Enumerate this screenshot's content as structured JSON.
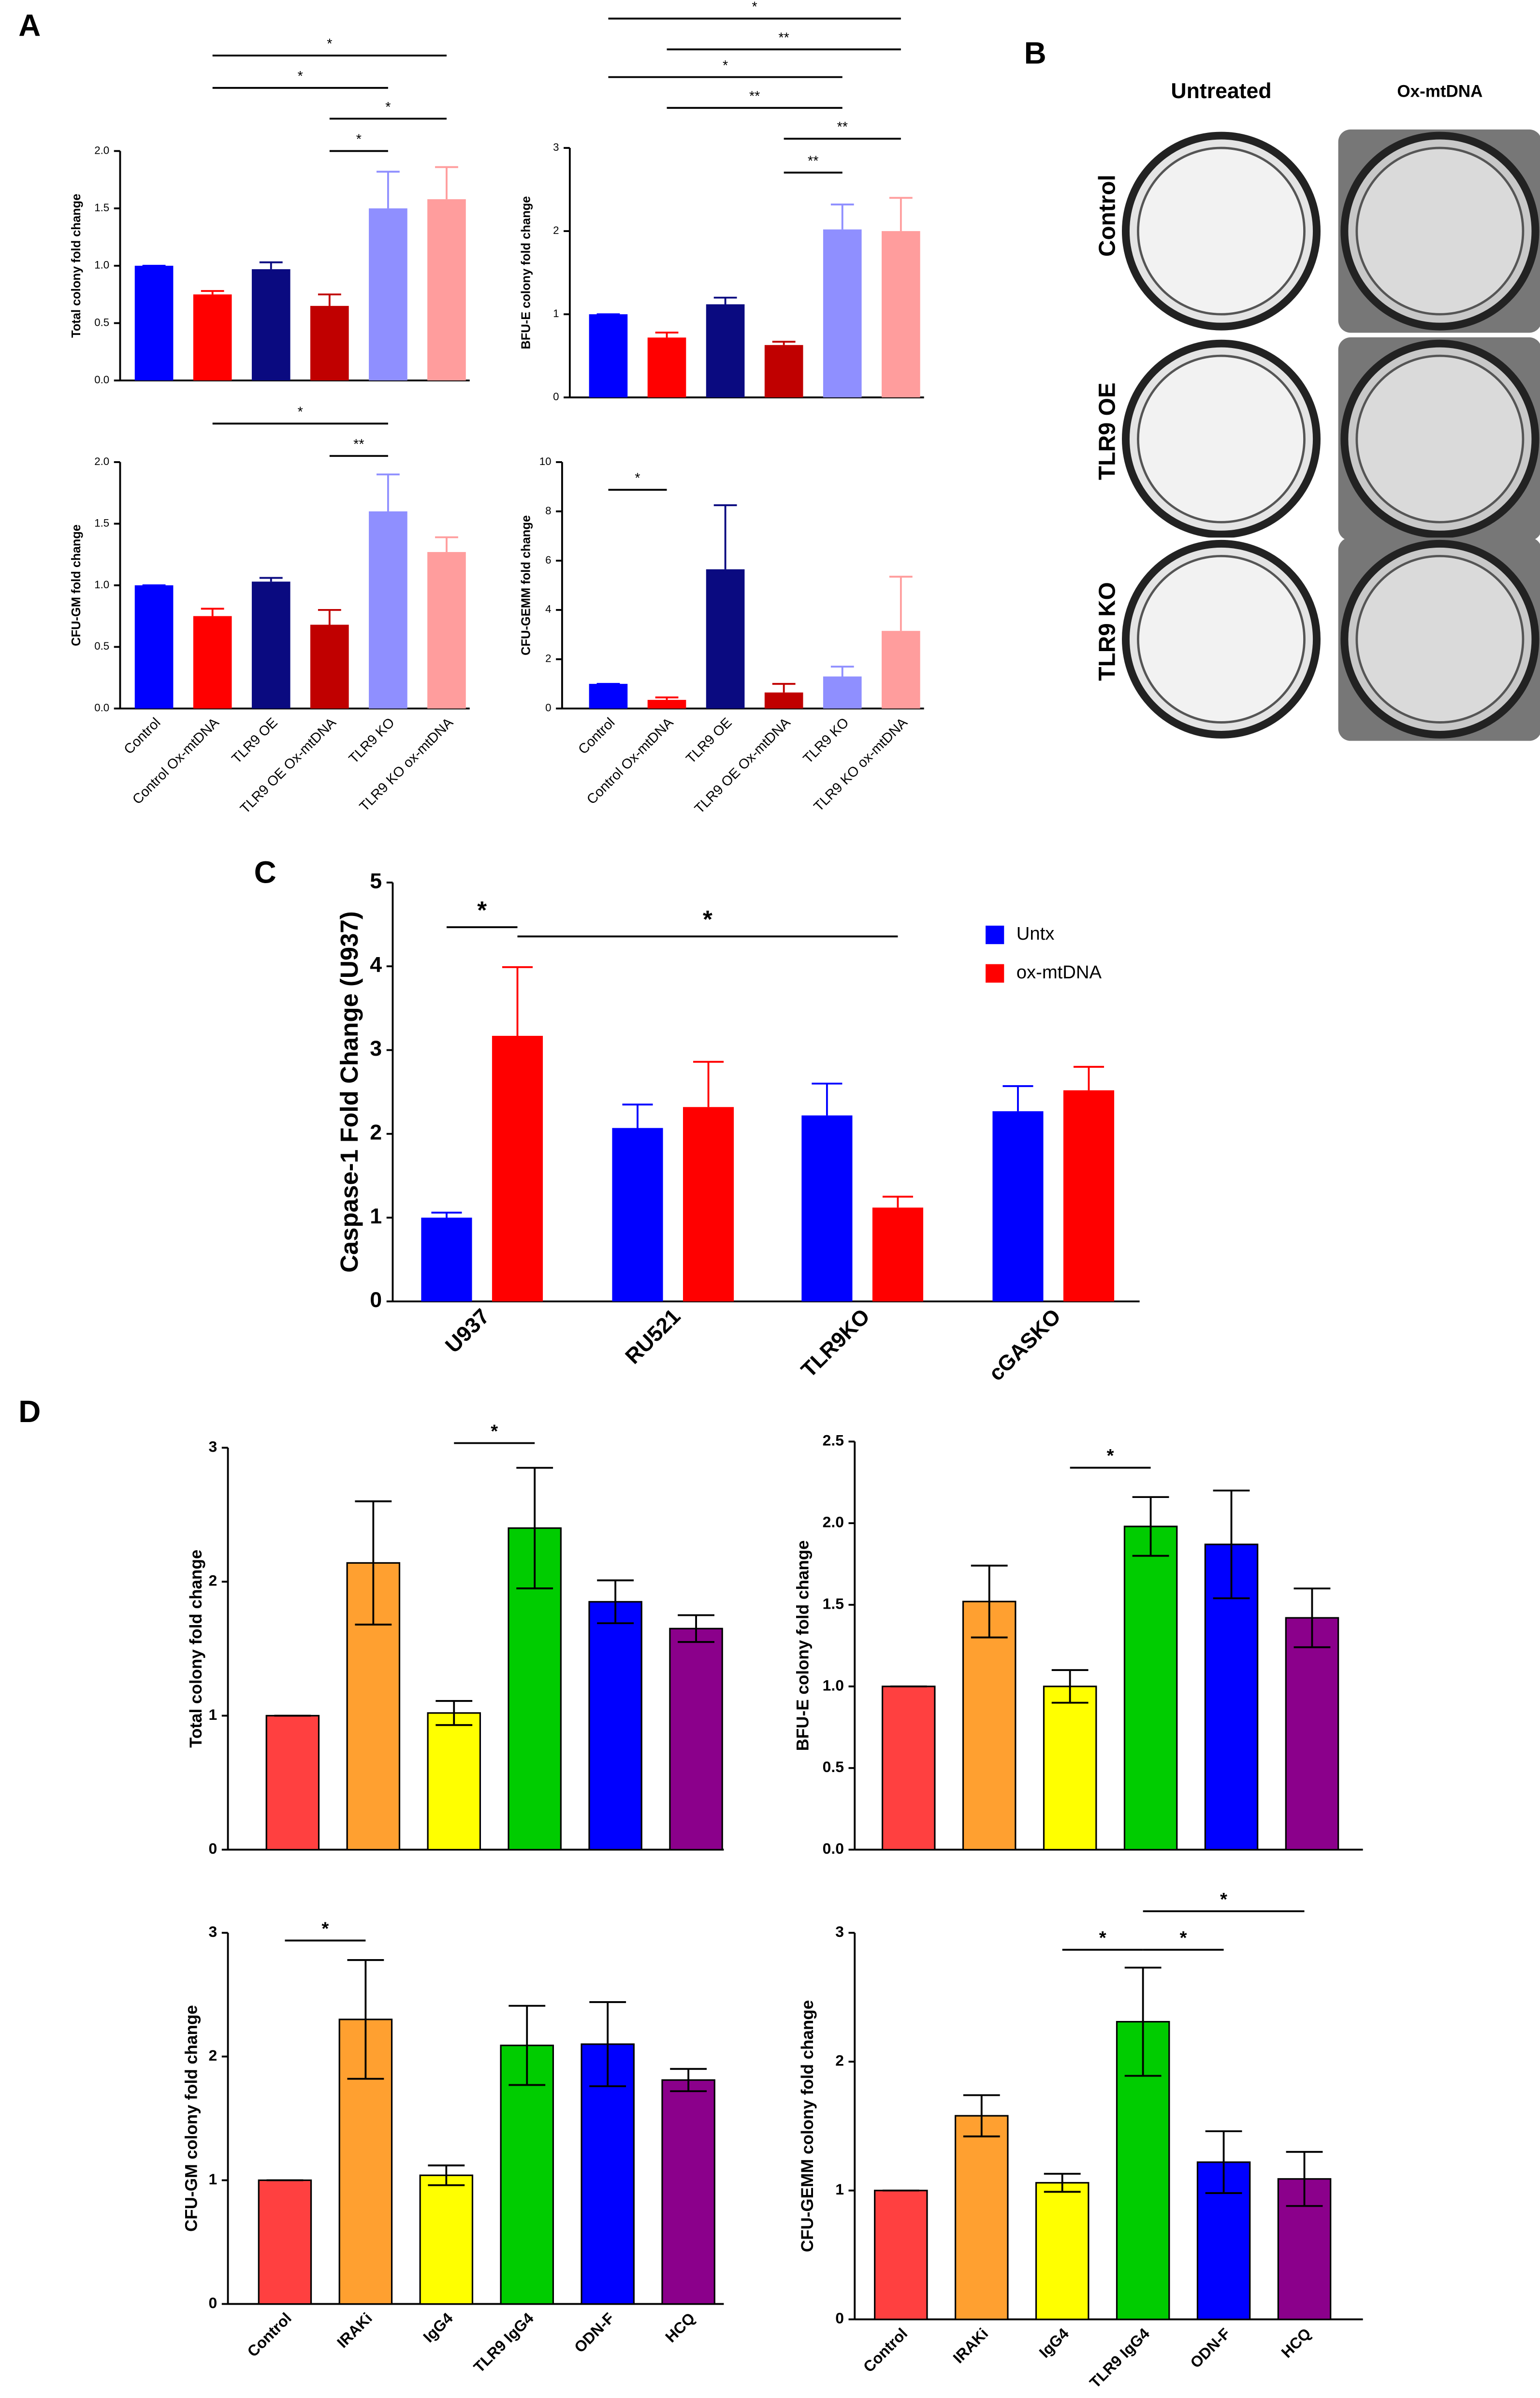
{
  "panel_labels": [
    "A",
    "B",
    "C",
    "D"
  ],
  "panel_b": {
    "columns": [
      "Untreated",
      "Ox-mtDNA"
    ],
    "rows": [
      "Control",
      "TLR9 OE",
      "TLR9 KO"
    ]
  },
  "chart_data": [
    {
      "type": "bar",
      "y_label": "Total colony fold change",
      "categories": [
        null,
        null,
        null,
        null,
        null,
        null
      ],
      "values": [
        1.0,
        0.75,
        0.97,
        0.65,
        1.5,
        1.58
      ],
      "errors": [
        0,
        0.03,
        0.06,
        0.1,
        0.32,
        0.28
      ],
      "colors": [
        "#0000ff",
        "#ff0000",
        "#0a0a80",
        "#c00000",
        "#8f8fff",
        "#ff9d9d"
      ],
      "ylim": [
        0,
        2
      ],
      "yticks": [
        {
          "value": 0,
          "label": "0.0"
        },
        0.5,
        {
          "value": 1,
          "label": "1.0"
        },
        1.5,
        {
          "value": 2,
          "label": "2.0"
        }
      ],
      "annotations": [
        {
          "label": "*",
          "from": 3,
          "to": 4
        },
        {
          "label": "*",
          "from": 3,
          "to": 5
        },
        {
          "label": "*",
          "from": 1,
          "to": 4
        },
        {
          "label": "*",
          "from": 1,
          "to": 5
        }
      ]
    },
    {
      "type": "bar",
      "y_label": "BFU-E colony fold change",
      "categories": [
        null,
        null,
        null,
        null,
        null,
        null
      ],
      "values": [
        1.0,
        0.72,
        1.12,
        0.63,
        2.02,
        2.0
      ],
      "errors": [
        0,
        0.06,
        0.08,
        0.04,
        0.3,
        0.4
      ],
      "colors": [
        "#0000ff",
        "#ff0000",
        "#0a0a80",
        "#c00000",
        "#8f8fff",
        "#ff9d9d"
      ],
      "ylim": [
        0,
        3
      ],
      "yticks": [
        0,
        1,
        2,
        3
      ],
      "annotations": [
        {
          "label": "**",
          "from": 3,
          "to": 4
        },
        {
          "label": "**",
          "from": 3,
          "to": 5
        },
        {
          "label": "**",
          "from": 1,
          "to": 4
        },
        {
          "label": "*",
          "from": 0,
          "to": 4
        },
        {
          "label": "**",
          "from": 1,
          "to": 5
        },
        {
          "label": "*",
          "from": 0,
          "to": 5
        }
      ]
    },
    {
      "type": "bar",
      "y_label": "CFU-GM fold change",
      "categories": [
        "Control",
        "Control Ox-mtDNA",
        "TLR9 OE",
        "TLR9 OE Ox-mtDNA",
        "TLR9 KO",
        "TLR9 KO ox-mtDNA"
      ],
      "values": [
        1.0,
        0.75,
        1.03,
        0.68,
        1.6,
        1.27
      ],
      "errors": [
        0,
        0.06,
        0.03,
        0.12,
        0.3,
        0.12
      ],
      "colors": [
        "#0000ff",
        "#ff0000",
        "#0a0a80",
        "#c00000",
        "#8f8fff",
        "#ff9d9d"
      ],
      "ylim": [
        0,
        2
      ],
      "yticks": [
        {
          "value": 0,
          "label": "0.0"
        },
        0.5,
        {
          "value": 1,
          "label": "1.0"
        },
        1.5,
        {
          "value": 2,
          "label": "2.0"
        }
      ],
      "annotations": [
        {
          "label": "**",
          "from": 3,
          "to": 4
        },
        {
          "label": "*",
          "from": 1,
          "to": 4
        }
      ]
    },
    {
      "type": "bar",
      "y_label": "CFU-GEMM fold change",
      "categories": [
        "Control",
        "Control Ox-mtDNA",
        "TLR9 OE",
        "TLR9 OE Ox-mtDNA",
        "TLR9 KO",
        "TLR9 KO ox-mtDNA"
      ],
      "values": [
        1.0,
        0.35,
        5.65,
        0.65,
        1.3,
        3.15
      ],
      "errors": [
        0,
        0.1,
        2.6,
        0.35,
        0.4,
        2.2
      ],
      "colors": [
        "#0000ff",
        "#ff0000",
        "#0a0a80",
        "#c00000",
        "#8f8fff",
        "#ff9d9d"
      ],
      "ylim": [
        0,
        10
      ],
      "yticks": [
        0,
        2,
        4,
        6,
        8,
        10
      ],
      "annotations": [
        {
          "label": "*",
          "from": 0,
          "to": 1
        }
      ]
    },
    {
      "type": "grouped_bar",
      "y_label": "Caspase-1 Fold Change (U937)",
      "categories": [
        "U937",
        "RU521",
        "TLR9KO",
        "cGASKO"
      ],
      "series": [
        {
          "name": "Untx",
          "color": "#0000ff",
          "values": [
            1.0,
            2.07,
            2.22,
            2.27
          ],
          "errors": [
            0.06,
            0.28,
            0.38,
            0.3
          ]
        },
        {
          "name": "ox-mtDNA",
          "color": "#ff0000",
          "values": [
            3.17,
            2.32,
            1.12,
            2.52
          ],
          "errors": [
            0.82,
            0.54,
            0.13,
            0.28
          ]
        }
      ],
      "ylim": [
        0,
        5
      ],
      "yticks": [
        0,
        1,
        2,
        3,
        4,
        5
      ],
      "legend": "upper right",
      "annotations": [
        {
          "label": "*",
          "from": 0,
          "to": 1
        },
        {
          "label": "*",
          "from": 1,
          "to": 5
        }
      ]
    },
    {
      "type": "bar",
      "y_label": "Total colony fold change",
      "categories": [
        null,
        null,
        null,
        null,
        null,
        null
      ],
      "values": [
        1.0,
        2.14,
        1.02,
        2.4,
        1.85,
        1.65
      ],
      "errors": [
        0,
        0.46,
        0.09,
        0.45,
        0.16,
        0.1
      ],
      "colors": [
        "#ff4040",
        "#ffa030",
        "#ffff00",
        "#00cc00",
        "#0000ff",
        "#8b008b"
      ],
      "ylim": [
        0,
        3
      ],
      "yticks": [
        0,
        1,
        2,
        3
      ],
      "annotations": [
        {
          "label": "*",
          "from": 2,
          "to": 3
        }
      ]
    },
    {
      "type": "bar",
      "y_label": "BFU-E colony fold change",
      "categories": [
        null,
        null,
        null,
        null,
        null,
        null
      ],
      "values": [
        1.0,
        1.52,
        1.0,
        1.98,
        1.87,
        1.42
      ],
      "errors": [
        0,
        0.22,
        0.1,
        0.18,
        0.33,
        0.18
      ],
      "colors": [
        "#ff4040",
        "#ffa030",
        "#ffff00",
        "#00cc00",
        "#0000ff",
        "#8b008b"
      ],
      "ylim": [
        0,
        2.5
      ],
      "yticks": [
        {
          "value": 0,
          "label": "0.0"
        },
        0.5,
        {
          "value": 1,
          "label": "1.0"
        },
        1.5,
        {
          "value": 2,
          "label": "2.0"
        },
        2.5
      ],
      "annotations": [
        {
          "label": "*",
          "from": 2,
          "to": 3
        }
      ]
    },
    {
      "type": "bar",
      "y_label": "CFU-GM colony fold change",
      "categories": [
        "Control",
        "IRAKi",
        "IgG4",
        "TLR9 IgG4",
        "ODN-F",
        "HCQ"
      ],
      "values": [
        1.0,
        2.3,
        1.04,
        2.09,
        2.1,
        1.81
      ],
      "errors": [
        0,
        0.48,
        0.08,
        0.32,
        0.34,
        0.09
      ],
      "colors": [
        "#ff4040",
        "#ffa030",
        "#ffff00",
        "#00cc00",
        "#0000ff",
        "#8b008b"
      ],
      "ylim": [
        0,
        3
      ],
      "yticks": [
        0,
        1,
        2,
        3
      ],
      "annotations": [
        {
          "label": "*",
          "from": 0,
          "to": 1
        }
      ]
    },
    {
      "type": "bar",
      "y_label": "CFU-GEMM colony fold change",
      "categories": [
        "Control",
        "IRAKi",
        "IgG4",
        "TLR9 IgG4",
        "ODN-F",
        "HCQ"
      ],
      "values": [
        1.0,
        1.58,
        1.06,
        2.31,
        1.22,
        1.09
      ],
      "errors": [
        0,
        0.16,
        0.07,
        0.42,
        0.24,
        0.21
      ],
      "colors": [
        "#ff4040",
        "#ffa030",
        "#ffff00",
        "#00cc00",
        "#0000ff",
        "#8b008b"
      ],
      "ylim": [
        0,
        3
      ],
      "yticks": [
        0,
        1,
        2,
        3
      ],
      "annotations": [
        {
          "label": "*",
          "from": 2,
          "to": 3
        },
        {
          "label": "*",
          "from": 3,
          "to": 4
        },
        {
          "label": "*",
          "from": 3,
          "to": 5
        }
      ]
    }
  ]
}
